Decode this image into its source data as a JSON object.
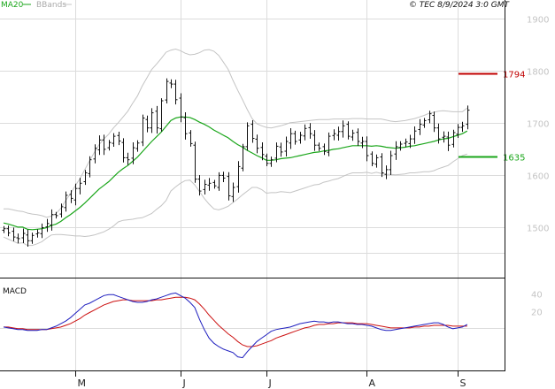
{
  "header": {
    "ma_label": "MA20",
    "bb_label": "BBands",
    "timestamp": "© TEC 8/9/2024 3:0 GMT"
  },
  "panels": {
    "macd_label": "MACD"
  },
  "colors": {
    "ma": "#1aa61a",
    "bands": "#c4c4c4",
    "price": "#111111",
    "grid": "#dcdcdc",
    "resistance": "#c00000",
    "support": "#1aa61a",
    "macd_line": "#1f1fbf",
    "signal_line": "#cc1111"
  },
  "chart_data": [
    {
      "type": "ohlc",
      "y_ticks": [
        "1900",
        "1800",
        "1700",
        "1600",
        "1500"
      ],
      "y_tick_values": [
        1900,
        1800,
        1700,
        1600,
        1500
      ],
      "ylim": [
        1405,
        1935
      ],
      "x_ticks": [
        "M",
        "J",
        "J",
        "A",
        "S"
      ],
      "x_tick_index": [
        15,
        37,
        55,
        76,
        95
      ],
      "reference_lines": [
        {
          "name": "resistance",
          "label": "1794",
          "value": 1794
        },
        {
          "name": "support",
          "label": "1635",
          "value": 1635
        }
      ],
      "close": [
        1497,
        1489,
        1481,
        1478,
        1488,
        1474,
        1484,
        1489,
        1499,
        1507,
        1524,
        1522,
        1539,
        1561,
        1555,
        1574,
        1584,
        1604,
        1629,
        1651,
        1667,
        1649,
        1662,
        1674,
        1665,
        1633,
        1629,
        1652,
        1661,
        1709,
        1690,
        1719,
        1690,
        1742,
        1779,
        1774,
        1744,
        1711,
        1679,
        1660,
        1592,
        1569,
        1582,
        1584,
        1579,
        1599,
        1594,
        1560,
        1576,
        1616,
        1654,
        1694,
        1670,
        1651,
        1639,
        1622,
        1629,
        1655,
        1644,
        1664,
        1679,
        1664,
        1676,
        1689,
        1679,
        1657,
        1651,
        1645,
        1674,
        1679,
        1683,
        1694,
        1674,
        1680,
        1664,
        1664,
        1637,
        1622,
        1633,
        1604,
        1610,
        1637,
        1654,
        1659,
        1663,
        1669,
        1684,
        1697,
        1704,
        1717,
        1690,
        1669,
        1674,
        1657,
        1681,
        1691,
        1694,
        1724
      ]
    },
    {
      "type": "line",
      "series": [
        {
          "values": [
            1508,
            1506,
            1503,
            1500,
            1500,
            1496,
            1495,
            1496,
            1497,
            1499,
            1503,
            1506,
            1511,
            1518,
            1524,
            1531,
            1538,
            1546,
            1555,
            1564,
            1573,
            1580,
            1587,
            1596,
            1605,
            1612,
            1618,
            1626,
            1634,
            1644,
            1654,
            1664,
            1673,
            1682,
            1693,
            1704,
            1709,
            1711,
            1711,
            1710,
            1706,
            1701,
            1697,
            1692,
            1686,
            1681,
            1676,
            1671,
            1664,
            1658,
            1653,
            1647,
            1642,
            1637,
            1633,
            1628,
            1628,
            1629,
            1631,
            1632,
            1633,
            1635,
            1637,
            1639,
            1641,
            1643,
            1644,
            1646,
            1647,
            1649,
            1650,
            1652,
            1654,
            1656,
            1656,
            1656,
            1656,
            1655,
            1656,
            1655,
            1653,
            1652,
            1651,
            1652,
            1653,
            1655,
            1656,
            1658,
            1660,
            1662,
            1664,
            1667,
            1669,
            1670,
            1673,
            1676,
            1679,
            1684
          ]
        },
        {
          "values": [
            1535,
            1535,
            1533,
            1531,
            1530,
            1527,
            1525,
            1524,
            1522,
            1519,
            1521,
            1526,
            1536,
            1551,
            1564,
            1579,
            1593,
            1610,
            1627,
            1643,
            1658,
            1669,
            1678,
            1690,
            1700,
            1711,
            1722,
            1737,
            1751,
            1770,
            1786,
            1802,
            1812,
            1823,
            1835,
            1839,
            1841,
            1838,
            1833,
            1830,
            1831,
            1834,
            1839,
            1840,
            1837,
            1829,
            1816,
            1802,
            1781,
            1762,
            1744,
            1725,
            1708,
            1698,
            1694,
            1691,
            1690,
            1692,
            1694,
            1697,
            1700,
            1701,
            1702,
            1703,
            1704,
            1705,
            1706,
            1706,
            1706,
            1707,
            1707,
            1707,
            1707,
            1708,
            1708,
            1708,
            1707,
            1707,
            1707,
            1707,
            1705,
            1703,
            1702,
            1703,
            1704,
            1706,
            1708,
            1711,
            1714,
            1718,
            1720,
            1722,
            1723,
            1722,
            1721,
            1721,
            1721,
            1728
          ]
        },
        {
          "values": [
            1481,
            1477,
            1473,
            1469,
            1470,
            1465,
            1465,
            1468,
            1472,
            1479,
            1485,
            1486,
            1486,
            1485,
            1484,
            1483,
            1483,
            1482,
            1483,
            1485,
            1488,
            1491,
            1496,
            1502,
            1510,
            1513,
            1514,
            1515,
            1517,
            1518,
            1522,
            1526,
            1534,
            1541,
            1551,
            1569,
            1577,
            1584,
            1589,
            1590,
            1581,
            1568,
            1555,
            1544,
            1535,
            1533,
            1536,
            1540,
            1547,
            1554,
            1562,
            1569,
            1576,
            1576,
            1572,
            1565,
            1566,
            1566,
            1568,
            1567,
            1566,
            1569,
            1572,
            1575,
            1578,
            1581,
            1582,
            1586,
            1588,
            1591,
            1593,
            1597,
            1601,
            1604,
            1604,
            1604,
            1605,
            1603,
            1605,
            1603,
            1601,
            1601,
            1600,
            1601,
            1602,
            1604,
            1604,
            1605,
            1606,
            1606,
            1608,
            1612,
            1615,
            1618,
            1625,
            1631,
            1637,
            1640
          ]
        }
      ]
    },
    {
      "type": "line",
      "y_ticks": [
        "40",
        "20"
      ],
      "y_tick_values": [
        40,
        20
      ],
      "ylim": [
        -50,
        57
      ],
      "series": [
        {
          "values": [
            1,
            0,
            -1,
            -2,
            -2,
            -3,
            -3,
            -3,
            -2,
            -2,
            0,
            2,
            5,
            8,
            12,
            17,
            22,
            27,
            29,
            32,
            35,
            38,
            39,
            39,
            37,
            35,
            33,
            31,
            30,
            30,
            31,
            33,
            34,
            36,
            38,
            40,
            41,
            38,
            35,
            30,
            24,
            10,
            -2,
            -12,
            -18,
            -22,
            -25,
            -27,
            -29,
            -34,
            -35,
            -28,
            -22,
            -16,
            -12,
            -8,
            -4,
            -2,
            -1,
            0,
            1,
            3,
            5,
            6,
            7,
            8,
            7,
            7,
            6,
            7,
            7,
            6,
            5,
            5,
            4,
            4,
            3,
            2,
            0,
            -2,
            -3,
            -3,
            -2,
            -1,
            0,
            1,
            2,
            3,
            4,
            5,
            6,
            6,
            4,
            1,
            -1,
            0,
            1,
            4
          ]
        },
        {
          "values": [
            1,
            1,
            0,
            -1,
            -1,
            -2,
            -2,
            -2,
            -2,
            -2,
            -1,
            0,
            1,
            3,
            5,
            8,
            11,
            15,
            18,
            21,
            24,
            27,
            29,
            31,
            32,
            33,
            33,
            32,
            32,
            32,
            32,
            32,
            33,
            33,
            34,
            35,
            36,
            36,
            36,
            35,
            33,
            28,
            22,
            15,
            9,
            3,
            -2,
            -7,
            -11,
            -16,
            -20,
            -22,
            -22,
            -21,
            -19,
            -17,
            -15,
            -12,
            -10,
            -8,
            -6,
            -4,
            -2,
            0,
            1,
            3,
            4,
            4,
            5,
            5,
            6,
            6,
            6,
            6,
            5,
            5,
            5,
            4,
            3,
            2,
            1,
            0,
            0,
            0,
            0,
            0,
            1,
            1,
            2,
            2,
            3,
            3,
            3,
            3,
            2,
            2,
            2,
            2
          ]
        }
      ]
    }
  ]
}
